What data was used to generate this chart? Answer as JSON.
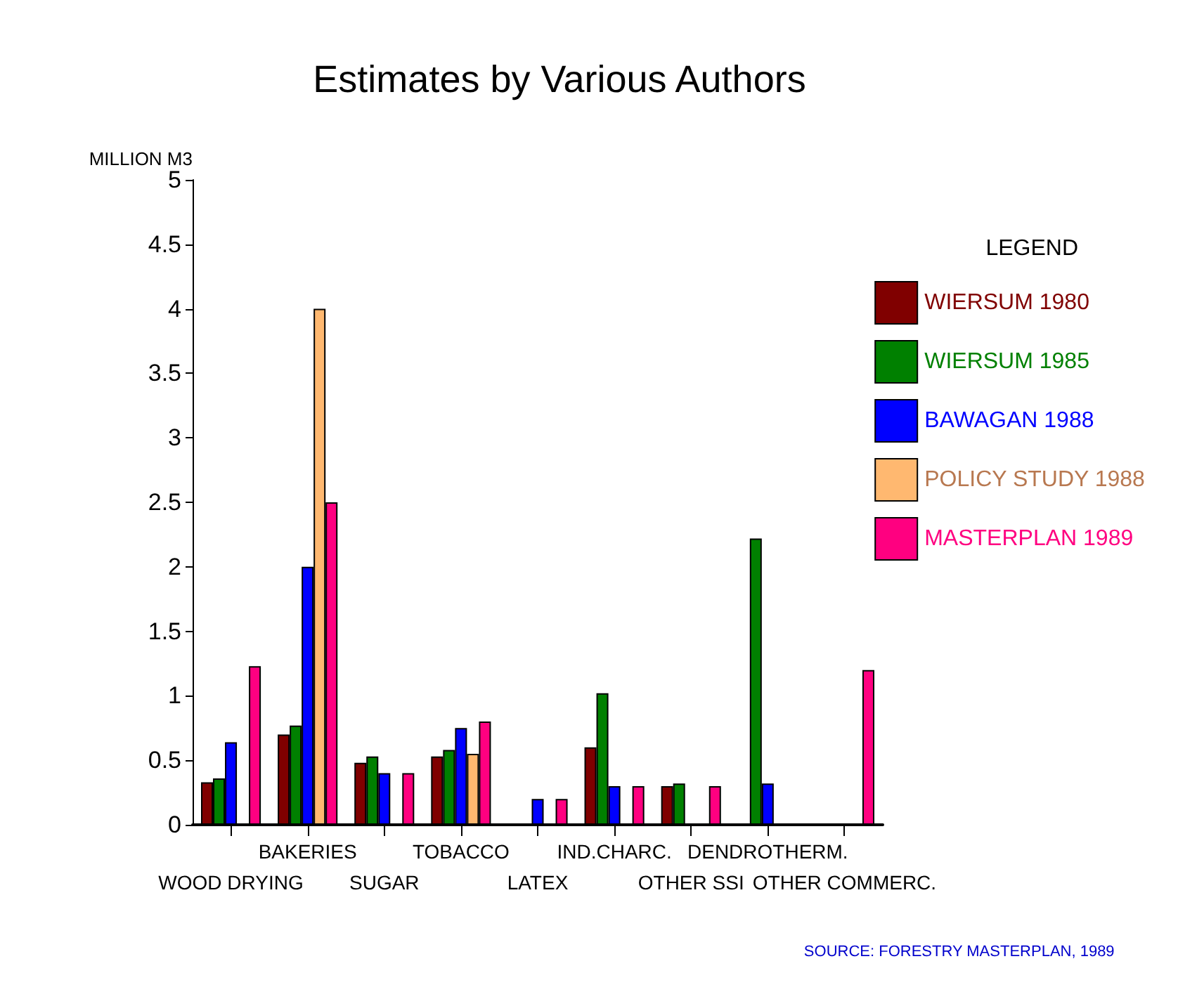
{
  "chart_data": {
    "type": "bar",
    "title": "Estimates by Various Authors",
    "ylabel": "MILLION M3",
    "legend_title": "LEGEND",
    "categories": [
      "WOOD DRYING",
      "BAKERIES",
      "SUGAR",
      "TOBACCO",
      "LATEX",
      "IND.CHARC.",
      "OTHER SSI",
      "DENDROTHERM.",
      "OTHER COMMERC."
    ],
    "series": [
      {
        "name": "WIERSUM 1980",
        "color": "#800000",
        "values": [
          0.33,
          0.7,
          0.48,
          0.53,
          null,
          0.6,
          0.3,
          null,
          null
        ]
      },
      {
        "name": "WIERSUM 1985",
        "color": "#008000",
        "values": [
          0.36,
          0.77,
          0.53,
          0.58,
          null,
          1.02,
          0.32,
          2.22,
          null
        ]
      },
      {
        "name": "BAWAGAN 1988",
        "color": "#0000ff",
        "values": [
          0.64,
          2.0,
          0.4,
          0.75,
          0.2,
          0.3,
          null,
          0.32,
          null
        ]
      },
      {
        "name": "POLICY STUDY 1988",
        "color": "#ffb870",
        "values": [
          null,
          4.0,
          null,
          0.55,
          null,
          null,
          null,
          null,
          null
        ]
      },
      {
        "name": "MASTERPLAN 1989",
        "color": "#ff0080",
        "values": [
          1.23,
          2.5,
          0.4,
          0.8,
          0.2,
          0.3,
          0.3,
          null,
          1.2
        ]
      }
    ],
    "ylim": [
      0,
      5
    ],
    "yticks": [
      0,
      0.5,
      1,
      1.5,
      2,
      2.5,
      3,
      3.5,
      4,
      4.5,
      5
    ],
    "grid": false,
    "legend": "right",
    "annotations": [
      "SOURCE: FORESTRY MASTERPLAN, 1989"
    ]
  }
}
